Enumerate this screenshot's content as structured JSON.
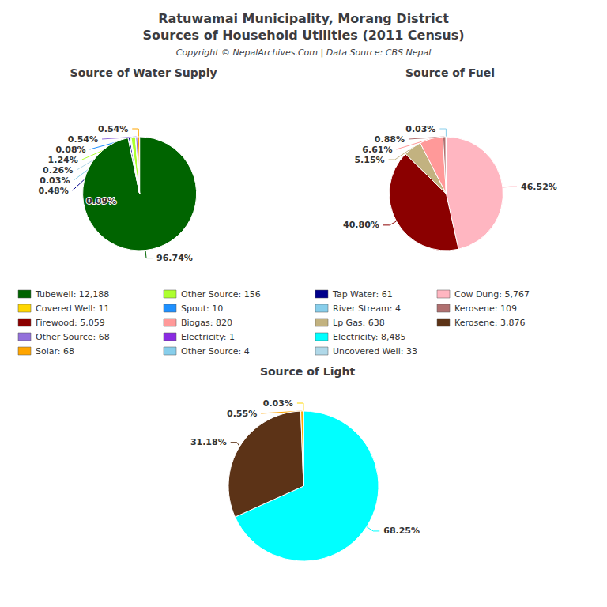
{
  "title": "Ratuwamai Municipality, Morang District\nSources of Household Utilities (2011 Census)",
  "subtitle": "Copyright © NepalArchives.Com | Data Source: CBS Nepal",
  "legend_items": [
    {
      "label": "Tubewell: 12,188",
      "color": "#006400"
    },
    {
      "label": "Covered Well: 11",
      "color": "#FFD700"
    },
    {
      "label": "Firewood: 5,059",
      "color": "#8B0000"
    },
    {
      "label": "Other Source: 68",
      "color": "#9370DB"
    },
    {
      "label": "Solar: 68",
      "color": "#FFA500"
    },
    {
      "label": "Other Source: 156",
      "color": "#ADFF2F"
    },
    {
      "label": "Spout: 10",
      "color": "#1E90FF"
    },
    {
      "label": "Biogas: 820",
      "color": "#FF9999"
    },
    {
      "label": "Electricity: 1",
      "color": "#8A2BE2"
    },
    {
      "label": "Other Source: 4",
      "color": "#87CEEB"
    },
    {
      "label": "Tap Water: 61",
      "color": "#00008B"
    },
    {
      "label": "River Stream: 4",
      "color": "#87CEEB"
    },
    {
      "label": "Lp Gas: 638",
      "color": "#C2B280"
    },
    {
      "label": "Electricity: 8,485",
      "color": "#00FFFF"
    },
    {
      "label": "Uncovered Well: 33",
      "color": "#B0D8E8"
    },
    {
      "label": "Cow Dung: 5,767",
      "color": "#FFB6C1"
    },
    {
      "label": "Kerosene: 109",
      "color": "#B07070"
    },
    {
      "label": "Kerosene: 3,876",
      "color": "#5C3317"
    }
  ],
  "chart_data": [
    {
      "type": "pie",
      "title": "Source of Water Supply",
      "values": [
        96.74,
        0.09,
        0.48,
        0.03,
        0.26,
        1.24,
        0.08,
        0.54,
        0.54
      ],
      "value_labels": [
        "96.74%",
        "0.09%",
        "0.48%",
        "0.03%",
        "0.26%",
        "1.24%",
        "0.08%",
        "0.54%",
        "0.54%"
      ],
      "colors": [
        "#006400",
        "#FFD700",
        "#00008B",
        "#87CEEB",
        "#B0D8E8",
        "#ADFF2F",
        "#1E90FF",
        "#9370DB",
        "#FFA500"
      ],
      "data_labels": true
    },
    {
      "type": "pie",
      "title": "Source of Fuel",
      "values": [
        46.52,
        40.8,
        5.15,
        6.61,
        0.88,
        0.01,
        0.03
      ],
      "value_labels": [
        "46.52%",
        "40.80%",
        "5.15%",
        "6.61%",
        "0.88%",
        null,
        "0.03%"
      ],
      "colors": [
        "#FFB6C1",
        "#8B0000",
        "#C2B280",
        "#FF9999",
        "#B07070",
        "#8A2BE2",
        "#87CEEB"
      ],
      "data_labels": true
    },
    {
      "type": "pie",
      "title": "Source of Light",
      "values": [
        68.25,
        31.18,
        0.55,
        0.03
      ],
      "value_labels": [
        "68.25%",
        "31.18%",
        "0.55%",
        "0.03%"
      ],
      "colors": [
        "#00FFFF",
        "#5C3317",
        "#FFA500",
        "#FFD700"
      ],
      "data_labels": true
    }
  ]
}
